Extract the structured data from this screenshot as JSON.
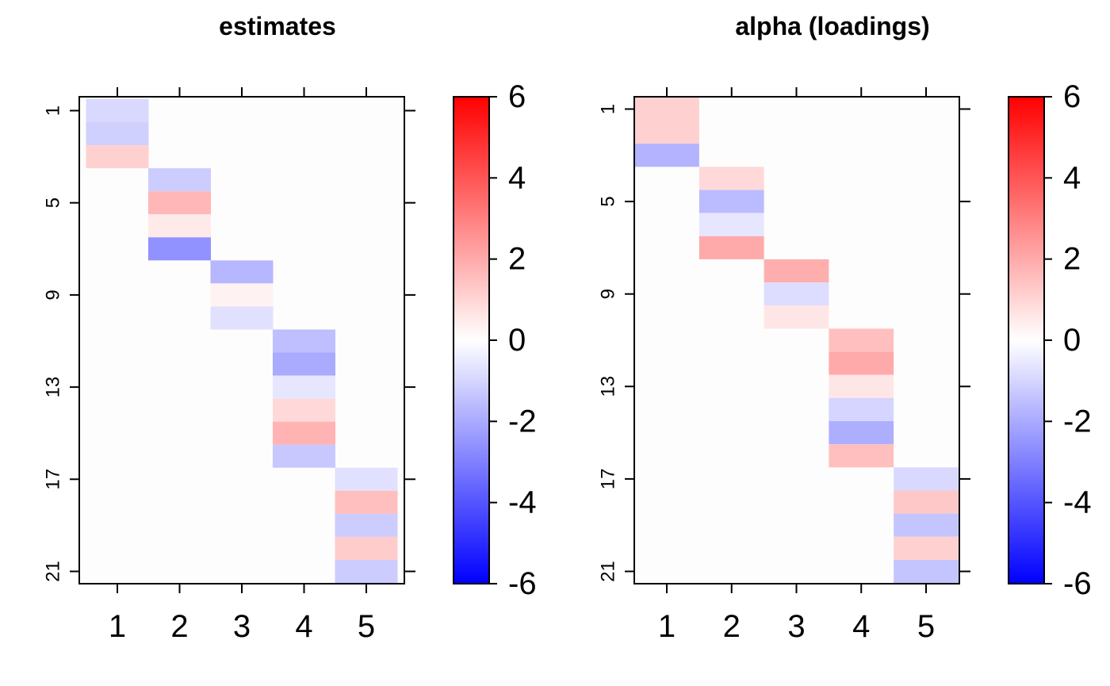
{
  "chart_data": [
    {
      "type": "heatmap",
      "title": "estimates",
      "xlabel": "",
      "ylabel": "",
      "x_ticks": [
        "1",
        "2",
        "3",
        "4",
        "5"
      ],
      "y_ticks": [
        "1",
        "5",
        "9",
        "13",
        "17",
        "21"
      ],
      "x_range": [
        1,
        5
      ],
      "y_range": [
        1,
        21
      ],
      "colorbar": {
        "range": [
          -6,
          6
        ],
        "ticks": [
          "6",
          "4",
          "2",
          "0",
          "-2",
          "-4",
          "-6"
        ],
        "low_color": "#0000ff",
        "mid_color": "#ffffff",
        "high_color": "#ff0000"
      },
      "cells": [
        {
          "col": 1,
          "rows": [
            1,
            2,
            3
          ],
          "values": [
            -0.9,
            -1.1,
            1.1
          ]
        },
        {
          "col": 2,
          "rows": [
            4,
            5,
            6,
            7
          ],
          "values": [
            -1.2,
            1.7,
            0.5,
            -2.6
          ]
        },
        {
          "col": 3,
          "rows": [
            8,
            9,
            10
          ],
          "values": [
            -1.7,
            0.3,
            -0.7
          ]
        },
        {
          "col": 4,
          "rows": [
            11,
            12,
            13,
            14,
            15,
            16
          ],
          "values": [
            -1.5,
            -2.0,
            -0.6,
            0.9,
            1.8,
            -1.3
          ]
        },
        {
          "col": 5,
          "rows": [
            17,
            18,
            19,
            20,
            21
          ],
          "values": [
            -0.7,
            1.5,
            -1.2,
            1.2,
            -1.2
          ]
        }
      ]
    },
    {
      "type": "heatmap",
      "title": "alpha (loadings)",
      "xlabel": "",
      "ylabel": "",
      "x_ticks": [
        "1",
        "2",
        "3",
        "4",
        "5"
      ],
      "y_ticks": [
        "1",
        "5",
        "9",
        "13",
        "17",
        "21"
      ],
      "x_range": [
        1,
        5
      ],
      "y_range": [
        1,
        21
      ],
      "colorbar": {
        "range": [
          -6,
          6
        ],
        "ticks": [
          "6",
          "4",
          "2",
          "0",
          "-2",
          "-4",
          "-6"
        ],
        "low_color": "#0000ff",
        "mid_color": "#ffffff",
        "high_color": "#ff0000"
      },
      "cells": [
        {
          "col": 1,
          "rows": [
            1,
            2,
            3
          ],
          "values": [
            1.1,
            1.1,
            -1.8
          ]
        },
        {
          "col": 2,
          "rows": [
            4,
            5,
            6,
            7
          ],
          "values": [
            0.9,
            -1.6,
            -0.6,
            2.0
          ]
        },
        {
          "col": 3,
          "rows": [
            8,
            9,
            10
          ],
          "values": [
            1.9,
            -0.8,
            0.6
          ]
        },
        {
          "col": 4,
          "rows": [
            11,
            12,
            13,
            14,
            15,
            16
          ],
          "values": [
            1.5,
            2.0,
            0.6,
            -1.0,
            -1.9,
            1.5
          ]
        },
        {
          "col": 5,
          "rows": [
            17,
            18,
            19,
            20,
            21
          ],
          "values": [
            -0.9,
            1.3,
            -1.4,
            1.1,
            -1.4
          ]
        }
      ]
    }
  ]
}
